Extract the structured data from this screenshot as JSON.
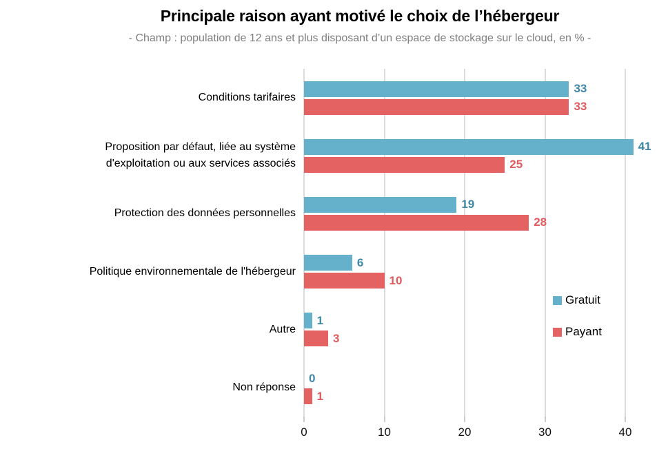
{
  "header": {
    "title": "Principale raison ayant motivé le choix de l’hébergeur",
    "subtitle": "- Champ : population de 12 ans et plus disposant d’un espace de stockage sur le cloud, en % -"
  },
  "chart_data": {
    "type": "bar",
    "orientation": "horizontal",
    "title": "Principale raison ayant motivé le choix de l’hébergeur",
    "subtitle": "- Champ : population de 12 ans et plus disposant d’un espace de stockage sur le cloud, en % -",
    "categories": [
      "Conditions tarifaires",
      "Proposition par défaut, liée au système\nd'exploitation ou aux services associés",
      "Protection des données personnelles",
      "Politique environnementale de l'hébergeur",
      "Autre",
      "Non réponse"
    ],
    "series": [
      {
        "name": "Gratuit",
        "color": "#65b1cb",
        "label_color": "#3e87a8",
        "values": [
          33,
          41,
          19,
          6,
          1,
          0
        ]
      },
      {
        "name": "Payant",
        "color": "#e46262",
        "label_color": "#e05a5e",
        "values": [
          33,
          25,
          28,
          10,
          3,
          1
        ]
      }
    ],
    "x_ticks": [
      0,
      10,
      20,
      30,
      40
    ],
    "xlim": [
      0,
      43
    ],
    "grid": true,
    "grid_color": "#dcdcdc",
    "legend_position": "right-middle",
    "value_labels": true
  }
}
